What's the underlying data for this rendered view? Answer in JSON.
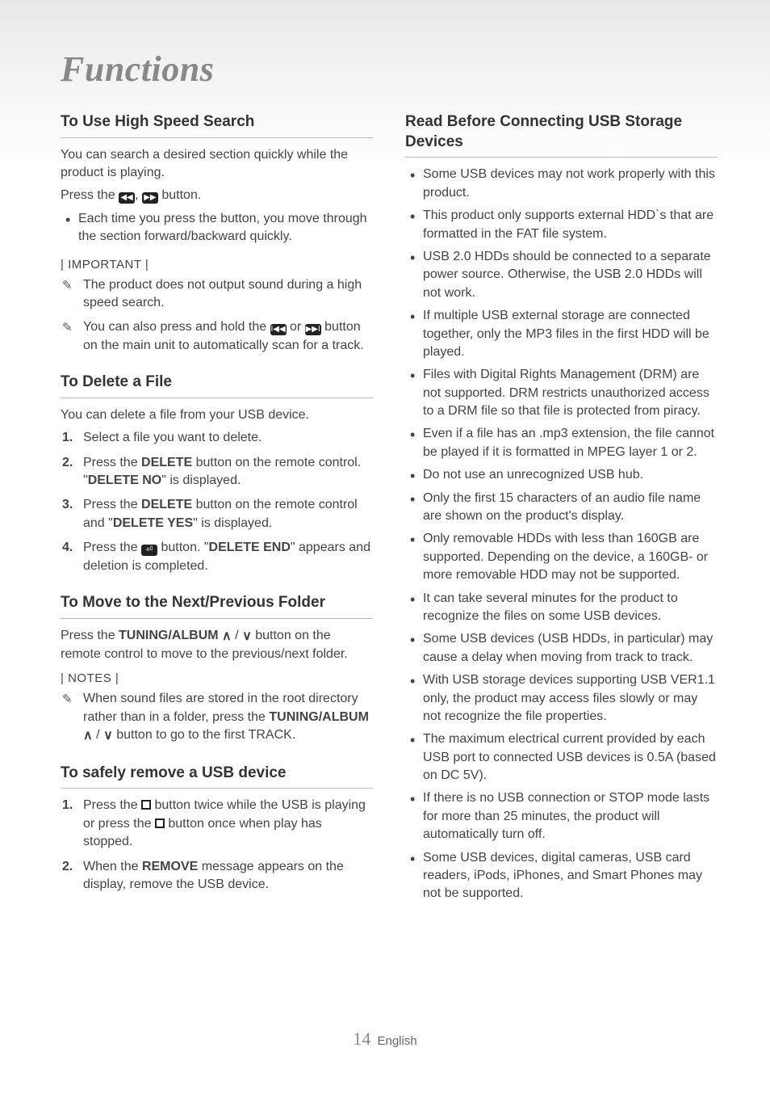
{
  "title": "Functions",
  "footer": {
    "page": "14",
    "lang": "English"
  },
  "left": {
    "s1": {
      "title": "To Use High Speed Search",
      "p1": "You can search a desired section quickly while the product is playing.",
      "p2a": "Press the ",
      "p2b": ", ",
      "p2c": " button.",
      "bul1": "Each time you press the button, you move through the section forward/backward quickly.",
      "important": "| IMPORTANT |",
      "pen1": "The product does not output sound during a high speed search.",
      "pen2a": "You can also press and hold the ",
      "pen2b": " or ",
      "pen2c": " button on the main unit to automatically scan for a track."
    },
    "s2": {
      "title": "To Delete a File",
      "p1": "You can delete a file from your USB device.",
      "li1": "Select a file you want to delete.",
      "li2a": "Press the ",
      "li2b": "DELETE",
      "li2c": " button on the remote control. \"",
      "li2d": "DELETE NO",
      "li2e": "\" is displayed.",
      "li3a": "Press the ",
      "li3b": "DELETE",
      "li3c": " button on the remote control and \"",
      "li3d": "DELETE YES",
      "li3e": "\" is displayed.",
      "li4a": "Press the ",
      "li4b": " button. \"",
      "li4c": "DELETE END",
      "li4d": "\" appears and deletion is completed."
    },
    "s3": {
      "title": "To Move to the Next/Previous Folder",
      "p1a": "Press the ",
      "p1b": "TUNING/ALBUM ",
      "p1c": " button on the remote control to move to the previous/next folder.",
      "notes": "| NOTES |",
      "pen1a": "When sound files are stored in the root directory rather than in a folder, press the ",
      "pen1b": "TUNING/ALBUM ",
      "pen1c": " button to go to the first TRACK."
    },
    "s4": {
      "title": "To safely remove a USB device",
      "li1a": "Press the ",
      "li1b": " button twice while the USB is playing or press the ",
      "li1c": " button once when play has stopped.",
      "li2a": "When the ",
      "li2b": "REMOVE",
      "li2c": " message appears on the display, remove the USB device."
    }
  },
  "right": {
    "title": "Read Before Connecting USB Storage Devices",
    "items": [
      "Some USB devices may not work properly with this product.",
      "This product only supports external HDD`s that are formatted in the FAT file system.",
      "USB 2.0 HDDs should be connected to a separate power source. Otherwise, the USB 2.0 HDDs will not work.",
      "If multiple USB external storage are connected together, only the MP3 files in the first HDD will be played.",
      "Files with Digital Rights Management (DRM) are not supported. DRM restricts unauthorized access to a DRM file so that file is protected from piracy.",
      "Even if a file has an .mp3 extension, the file cannot be played if it is formatted in MPEG layer 1 or 2.",
      "Do not use an unrecognized USB hub.",
      "Only the first 15 characters of an audio file name are shown on the product's display.",
      "Only removable HDDs with less than 160GB are supported. Depending on the device, a 160GB- or more removable HDD may not be supported.",
      "It can take several minutes for the product to recognize the files on some USB devices.",
      "Some USB devices (USB HDDs, in particular) may cause a delay when moving from track to track.",
      "With USB storage devices supporting USB VER1.1 only, the product may access files slowly or may not recognize the file properties.",
      "The maximum electrical current provided by each USB port to connected USB devices is 0.5A (based on DC 5V).",
      "If there is no USB connection or STOP mode lasts for more than 25 minutes, the product will automatically turn off.",
      "Some USB devices, digital cameras, USB card readers, iPods, iPhones, and Smart Phones may not be supported."
    ]
  }
}
